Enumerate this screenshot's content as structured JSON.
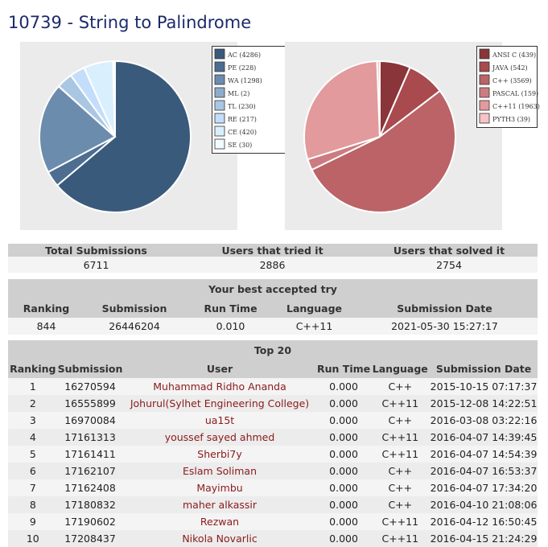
{
  "page": {
    "title": "10739 - String to Palindrome"
  },
  "verdict_chart": {
    "type": "pie",
    "chart_data": {
      "type": "pie",
      "labels": [
        "AC (4286)",
        "PE (228)",
        "WA (1298)",
        "ML (2)",
        "TL (230)",
        "RE (217)",
        "CE (420)",
        "SE (30)"
      ],
      "values": [
        4286,
        228,
        1298,
        2,
        230,
        217,
        420,
        30
      ],
      "colors": [
        "#3a5a7c",
        "#4d6d91",
        "#6c8cad",
        "#8caccb",
        "#a9c7e3",
        "#c3defa",
        "#d9effd",
        "#f1fbff"
      ]
    }
  },
  "language_chart": {
    "type": "pie",
    "chart_data": {
      "type": "pie",
      "labels": [
        "ANSI C (439)",
        "JAVA (542)",
        "C++ (3569)",
        "PASCAL (159)",
        "C++11 (1963)",
        "PYTH3 (39)"
      ],
      "values": [
        439,
        542,
        3569,
        159,
        1963,
        39
      ],
      "colors": [
        "#8a3539",
        "#a84a4e",
        "#bb6367",
        "#cc7c80",
        "#e29a9c",
        "#f7c3c4"
      ]
    }
  },
  "stats": {
    "headers": [
      "Total Submissions",
      "Users that tried it",
      "Users that solved it"
    ],
    "values": [
      "6711",
      "2886",
      "2754"
    ]
  },
  "best_try": {
    "caption": "Your best accepted try",
    "headers": [
      "Ranking",
      "Submission",
      "Run Time",
      "Language",
      "Submission Date"
    ],
    "values": [
      "844",
      "26446204",
      "0.010",
      "C++11",
      "2021-05-30 15:27:17"
    ]
  },
  "top20": {
    "caption": "Top 20",
    "headers": [
      "Ranking",
      "Submission",
      "User",
      "Run Time",
      "Language",
      "Submission Date"
    ],
    "rows": [
      [
        "1",
        "16270594",
        "Muhammad Ridho Ananda",
        "0.000",
        "C++",
        "2015-10-15 07:17:37"
      ],
      [
        "2",
        "16555899",
        "Johurul(Sylhet Engineering College)",
        "0.000",
        "C++11",
        "2015-12-08 14:22:51"
      ],
      [
        "3",
        "16970084",
        "ua15t",
        "0.000",
        "C++",
        "2016-03-08 03:22:16"
      ],
      [
        "4",
        "17161313",
        "youssef sayed ahmed",
        "0.000",
        "C++11",
        "2016-04-07 14:39:45"
      ],
      [
        "5",
        "17161411",
        "Sherbi7y",
        "0.000",
        "C++11",
        "2016-04-07 14:54:39"
      ],
      [
        "6",
        "17162107",
        "Eslam Soliman",
        "0.000",
        "C++",
        "2016-04-07 16:53:37"
      ],
      [
        "7",
        "17162408",
        "Mayimbu",
        "0.000",
        "C++",
        "2016-04-07 17:34:20"
      ],
      [
        "8",
        "17180832",
        "maher alkassir",
        "0.000",
        "C++",
        "2016-04-10 21:08:06"
      ],
      [
        "9",
        "17190602",
        "Rezwan",
        "0.000",
        "C++11",
        "2016-04-12 16:50:45"
      ],
      [
        "10",
        "17208437",
        "Nikola Novarlic",
        "0.000",
        "C++11",
        "2016-04-15 21:24:29"
      ]
    ]
  }
}
